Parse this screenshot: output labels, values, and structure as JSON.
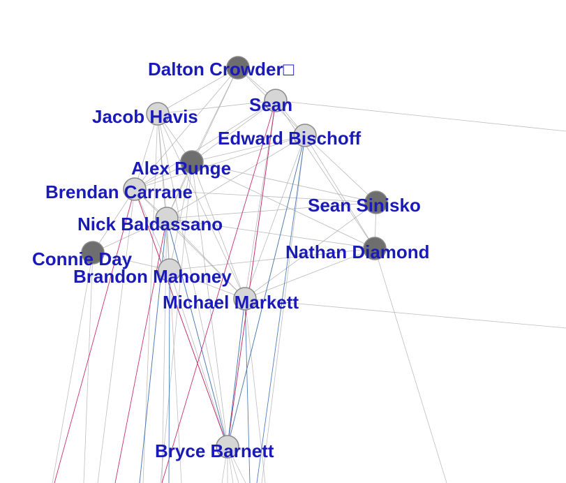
{
  "colors": {
    "label": "#1a1ab8",
    "node_light": "#d6d6d6",
    "node_dark": "#6e6e6e",
    "node_stroke": "#8a8a8a",
    "edge_grey": "#a8a8a8",
    "edge_red": "#c2185b",
    "edge_blue": "#3a6fb8"
  },
  "nodes": [
    {
      "id": "dalton",
      "label": "Dalton Crowder□",
      "shade": "dark"
    },
    {
      "id": "sean",
      "label": "Sean",
      "shade": "light"
    },
    {
      "id": "jacob",
      "label": "Jacob Havis",
      "shade": "light"
    },
    {
      "id": "edward",
      "label": "Edward Bischoff",
      "shade": "light"
    },
    {
      "id": "alex",
      "label": "Alex Runge",
      "shade": "dark"
    },
    {
      "id": "brendan",
      "label": "Brendan Carrane",
      "shade": "light"
    },
    {
      "id": "seans",
      "label": "Sean Sinisko",
      "shade": "dark"
    },
    {
      "id": "nick",
      "label": "Nick Baldassano",
      "shade": "light"
    },
    {
      "id": "nathan",
      "label": "Nathan Diamond",
      "shade": "dark"
    },
    {
      "id": "connie",
      "label": "Connie Day",
      "shade": "dark"
    },
    {
      "id": "brandon",
      "label": "Brandon Mahoney",
      "shade": "light"
    },
    {
      "id": "michael",
      "label": "Michael Markett",
      "shade": "light"
    },
    {
      "id": "bryce",
      "label": "Bryce Barnett",
      "shade": "light"
    }
  ],
  "edges": [
    [
      "dalton",
      "jacob"
    ],
    [
      "dalton",
      "sean"
    ],
    [
      "dalton",
      "edward"
    ],
    [
      "dalton",
      "alex"
    ],
    [
      "dalton",
      "brendan"
    ],
    [
      "dalton",
      "nick"
    ],
    [
      "sean",
      "jacob"
    ],
    [
      "sean",
      "edward"
    ],
    [
      "sean",
      "alex"
    ],
    [
      "sean",
      "brendan"
    ],
    [
      "sean",
      "michael"
    ],
    [
      "sean",
      "nathan"
    ],
    [
      "jacob",
      "alex"
    ],
    [
      "jacob",
      "brendan"
    ],
    [
      "jacob",
      "nick"
    ],
    [
      "jacob",
      "brandon"
    ],
    [
      "jacob",
      "michael"
    ],
    [
      "edward",
      "alex"
    ],
    [
      "edward",
      "brendan"
    ],
    [
      "edward",
      "seans"
    ],
    [
      "edward",
      "nathan"
    ],
    [
      "edward",
      "michael"
    ],
    [
      "edward",
      "nick"
    ],
    [
      "alex",
      "brendan"
    ],
    [
      "alex",
      "nick"
    ],
    [
      "alex",
      "brandon"
    ],
    [
      "alex",
      "michael"
    ],
    [
      "alex",
      "seans"
    ],
    [
      "alex",
      "nathan"
    ],
    [
      "brendan",
      "nick"
    ],
    [
      "brendan",
      "connie"
    ],
    [
      "brendan",
      "brandon"
    ],
    [
      "brendan",
      "michael"
    ],
    [
      "brendan",
      "seans"
    ],
    [
      "nick",
      "connie"
    ],
    [
      "nick",
      "brandon"
    ],
    [
      "nick",
      "michael"
    ],
    [
      "nick",
      "seans"
    ],
    [
      "nick",
      "nathan"
    ],
    [
      "connie",
      "brandon"
    ],
    [
      "brandon",
      "michael"
    ],
    [
      "brandon",
      "nathan"
    ],
    [
      "michael",
      "nathan"
    ],
    [
      "michael",
      "seans"
    ],
    [
      "michael",
      "bryce"
    ],
    [
      "nathan",
      "seans"
    ],
    [
      "brandon",
      "bryce"
    ],
    [
      "nick",
      "bryce"
    ],
    [
      "jacob",
      "bryce"
    ],
    [
      "alex",
      "bryce"
    ],
    [
      "brendan",
      "bryce"
    ],
    [
      "sean",
      "bryce"
    ],
    [
      "edward",
      "bryce"
    ]
  ],
  "colored_edges": [
    [
      "sean",
      "bryce",
      "red"
    ],
    [
      "brendan",
      "bryce",
      "red"
    ],
    [
      "edward",
      "bryce",
      "blue"
    ],
    [
      "nick",
      "bryce",
      "blue"
    ],
    [
      "michael",
      "bryce",
      "blue"
    ]
  ]
}
